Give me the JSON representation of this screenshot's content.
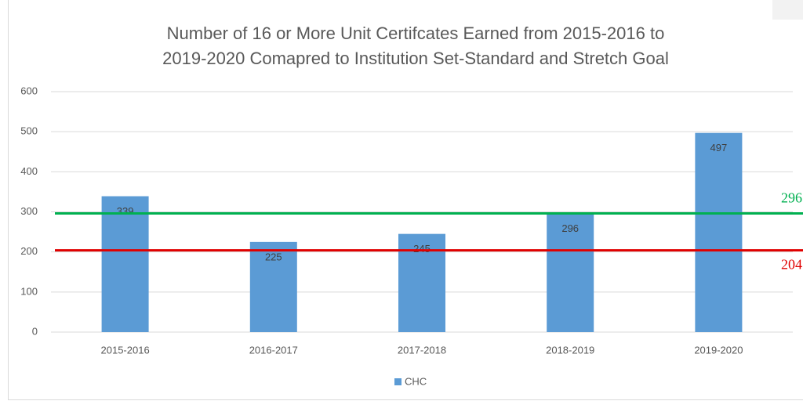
{
  "chart_data": {
    "type": "bar",
    "title": [
      "Number of 16 or More Unit Certifcates Earned from 2015-2016 to",
      "2019-2020 Comapred to Institution Set-Standard and Stretch Goal"
    ],
    "categories": [
      "2015-2016",
      "2016-2017",
      "2017-2018",
      "2018-2019",
      "2019-2020"
    ],
    "series": [
      {
        "name": "CHC",
        "color": "#5b9bd5",
        "values": [
          339,
          225,
          245,
          296,
          497
        ]
      }
    ],
    "reference_lines": [
      {
        "value": 296,
        "color": "#00b050"
      },
      {
        "value": 204,
        "color": "#e00000"
      }
    ],
    "ylim": [
      0,
      600
    ],
    "yticks": [
      0,
      100,
      200,
      300,
      400,
      500,
      600
    ],
    "grid": true,
    "legend": "bottom"
  }
}
